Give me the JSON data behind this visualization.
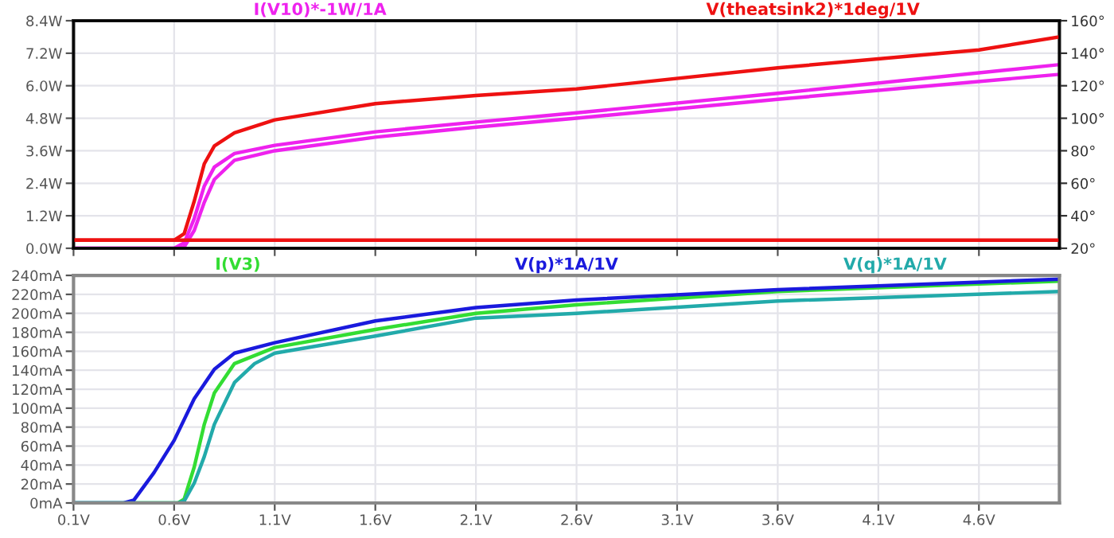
{
  "chart_data": [
    {
      "type": "line",
      "xlim": [
        0.1,
        5.0
      ],
      "xticks": [
        {
          "value": 0.1,
          "label": null
        },
        {
          "value": 0.6,
          "label": null
        },
        {
          "value": 1.1,
          "label": null
        },
        {
          "value": 1.6,
          "label": null
        },
        {
          "value": 2.1,
          "label": null
        },
        {
          "value": 2.6,
          "label": null
        },
        {
          "value": 3.1,
          "label": null
        },
        {
          "value": 3.6,
          "label": null
        },
        {
          "value": 4.1,
          "label": null
        },
        {
          "value": 4.6,
          "label": null
        }
      ],
      "ylim": [
        0,
        8.4
      ],
      "yticks": [
        {
          "value": 0,
          "label": "0.0W"
        },
        {
          "value": 1.2,
          "label": "1.2W"
        },
        {
          "value": 2.4,
          "label": "2.4W"
        },
        {
          "value": 3.6,
          "label": "3.6W"
        },
        {
          "value": 4.8,
          "label": "4.8W"
        },
        {
          "value": 6.0,
          "label": "6.0W"
        },
        {
          "value": 7.2,
          "label": "7.2W"
        },
        {
          "value": 8.4,
          "label": "8.4W"
        }
      ],
      "y2lim": [
        20,
        160
      ],
      "y2ticks": [
        {
          "value": 20,
          "label": "20°"
        },
        {
          "value": 40,
          "label": "40°"
        },
        {
          "value": 60,
          "label": "60°"
        },
        {
          "value": 80,
          "label": "80°"
        },
        {
          "value": 100,
          "label": "100°"
        },
        {
          "value": 120,
          "label": "120°"
        },
        {
          "value": 140,
          "label": "140°"
        },
        {
          "value": 160,
          "label": "160°"
        }
      ],
      "tick_labels": "y",
      "grid": true,
      "legend": "top",
      "series": [
        {
          "name": "I(V10)*-1W/1A",
          "color": "#ee22ee",
          "x": [
            0.1,
            0.6,
            0.65,
            0.7,
            0.75,
            0.8,
            0.9,
            1.1,
            1.6,
            2.1,
            2.6,
            3.6,
            5.0
          ],
          "values": [
            0,
            0,
            0.2,
            1.1,
            2.3,
            3.0,
            3.5,
            3.8,
            4.3,
            4.66,
            5.0,
            5.72,
            6.78
          ]
        },
        {
          "color": "#ee22ee",
          "x": [
            0.1,
            0.62,
            0.65,
            0.7,
            0.75,
            0.8,
            0.9,
            1.1,
            1.6,
            2.1,
            2.6,
            3.6,
            5.0
          ],
          "values": [
            0,
            0,
            0.05,
            0.66,
            1.7,
            2.54,
            3.25,
            3.6,
            4.1,
            4.47,
            4.8,
            5.5,
            6.42
          ]
        },
        {
          "name": "V(theatsink2)*1deg/1V",
          "color": "#ee1111",
          "axis": "y2",
          "x": [
            0.1,
            0.6,
            0.65,
            0.7,
            0.75,
            0.8,
            0.9,
            1.1,
            1.6,
            2.1,
            2.6,
            3.6,
            4.6,
            5.0
          ],
          "values": [
            25,
            25,
            29,
            49,
            72,
            83,
            91,
            99,
            109,
            114,
            118,
            131,
            142,
            150
          ]
        },
        {
          "color": "#ee1111",
          "axis": "y2",
          "x": [
            0.1,
            5.0
          ],
          "values": [
            25,
            25
          ]
        }
      ]
    },
    {
      "type": "line",
      "xlim": [
        0.1,
        5.0
      ],
      "xticks": [
        {
          "value": 0.1,
          "label": "0.1V"
        },
        {
          "value": 0.6,
          "label": "0.6V"
        },
        {
          "value": 1.1,
          "label": "1.1V"
        },
        {
          "value": 1.6,
          "label": "1.6V"
        },
        {
          "value": 2.1,
          "label": "2.1V"
        },
        {
          "value": 2.6,
          "label": "2.6V"
        },
        {
          "value": 3.1,
          "label": "3.1V"
        },
        {
          "value": 3.6,
          "label": "3.6V"
        },
        {
          "value": 4.1,
          "label": "4.1V"
        },
        {
          "value": 4.6,
          "label": "4.6V"
        }
      ],
      "ylim": [
        0,
        240
      ],
      "yticks": [
        {
          "value": 0,
          "label": "0mA"
        },
        {
          "value": 20,
          "label": "20mA"
        },
        {
          "value": 40,
          "label": "40mA"
        },
        {
          "value": 60,
          "label": "60mA"
        },
        {
          "value": 80,
          "label": "80mA"
        },
        {
          "value": 100,
          "label": "100mA"
        },
        {
          "value": 120,
          "label": "120mA"
        },
        {
          "value": 140,
          "label": "140mA"
        },
        {
          "value": 160,
          "label": "160mA"
        },
        {
          "value": 180,
          "label": "180mA"
        },
        {
          "value": 200,
          "label": "200mA"
        },
        {
          "value": 220,
          "label": "220mA"
        },
        {
          "value": 240,
          "label": "240mA"
        }
      ],
      "grid": true,
      "legend": "top",
      "series": [
        {
          "name": "I(V3)",
          "color": "#33dd33",
          "x": [
            0.1,
            0.62,
            0.65,
            0.7,
            0.75,
            0.8,
            0.9,
            1.1,
            1.6,
            2.1,
            2.6,
            3.6,
            5.0
          ],
          "values": [
            0,
            0,
            4,
            38,
            83,
            116,
            147,
            164,
            183,
            200,
            209,
            223,
            234
          ]
        },
        {
          "name": "V(p)*1A/1V",
          "color": "#1a1add",
          "x": [
            0.1,
            0.35,
            0.4,
            0.5,
            0.6,
            0.7,
            0.8,
            0.9,
            1.1,
            1.6,
            2.1,
            2.6,
            3.6,
            5.0
          ],
          "values": [
            0,
            0,
            3,
            32,
            66,
            110,
            141,
            158,
            169,
            192,
            206,
            214,
            225,
            236
          ]
        },
        {
          "name": "V(q)*1A/1V",
          "color": "#22aaaa",
          "x": [
            0.1,
            0.62,
            0.65,
            0.7,
            0.75,
            0.8,
            0.9,
            1.0,
            1.1,
            1.6,
            2.1,
            2.6,
            3.6,
            5.0
          ],
          "values": [
            0,
            0,
            2,
            21,
            49,
            83,
            127,
            147,
            158,
            176,
            195,
            200,
            213,
            223
          ]
        }
      ]
    }
  ]
}
